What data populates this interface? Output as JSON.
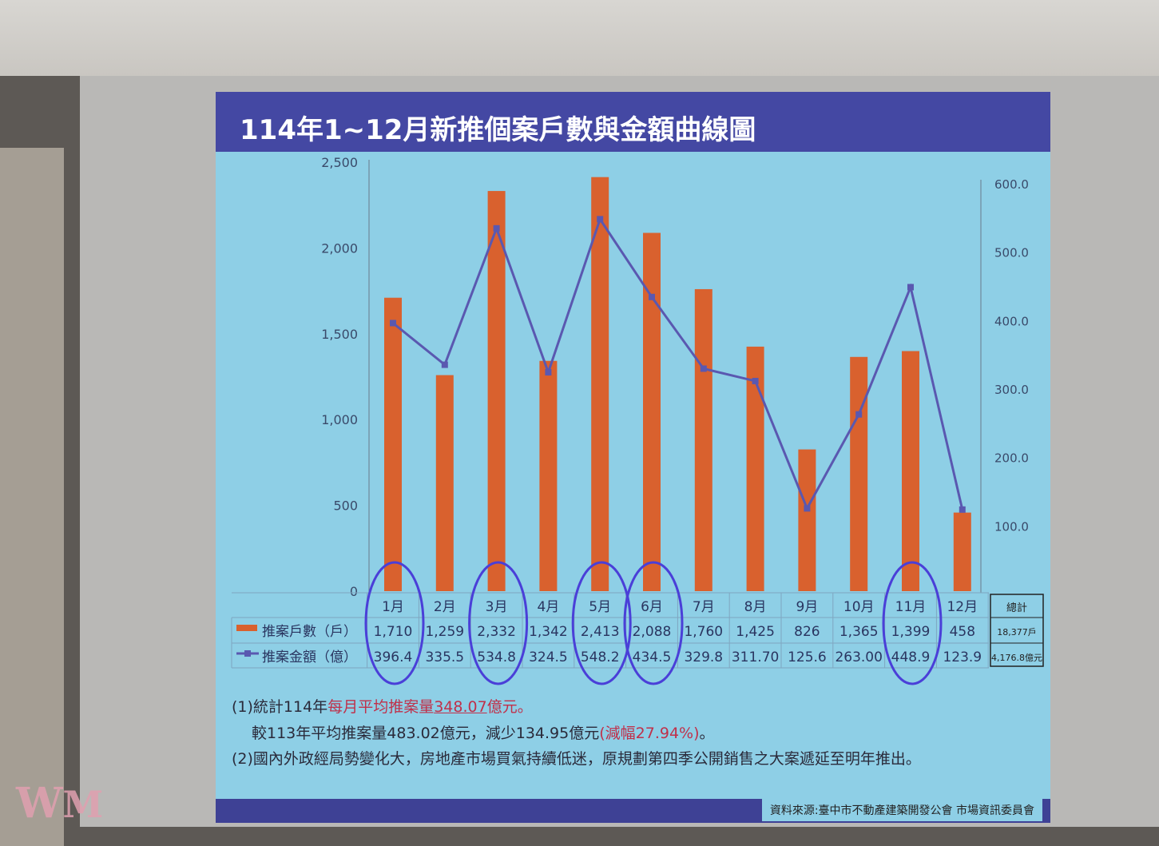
{
  "slide": {
    "title": "114年1~12月新推個案戶數與金額曲線圖",
    "notes": {
      "line1_prefix": "(1)統計114年",
      "line1_red": "每月平均推案量",
      "line1_value": "348.07",
      "line1_suffix": "億元。",
      "line2_prefix": "較113年平均推案量483.02億元，減少134.95億元",
      "line2_red": "(減幅27.94%)",
      "line2_suffix": "。",
      "line3": "(2)國內外政經局勢變化大，房地產市場買氣持續低迷，原規劃第四季公開銷售之大案遞延至明年推出。"
    },
    "source": "資料來源:臺中市不動產建築開發公會 市場資訊委員會",
    "watermark": "WM"
  },
  "chart_data": {
    "type": "bar+line",
    "categories": [
      "1月",
      "2月",
      "3月",
      "4月",
      "5月",
      "6月",
      "7月",
      "8月",
      "9月",
      "10月",
      "11月",
      "12月"
    ],
    "series": [
      {
        "name": "推案戶數（戶）",
        "type": "bar",
        "axis": "left",
        "color": "#d9612e",
        "values": [
          1710,
          1259,
          2332,
          1342,
          2413,
          2088,
          1760,
          1425,
          826,
          1365,
          1399,
          458
        ],
        "labels": [
          "1,710",
          "1,259",
          "2,332",
          "1,342",
          "2,413",
          "2,088",
          "1,760",
          "1,425",
          "826",
          "1,365",
          "1,399",
          "458"
        ]
      },
      {
        "name": "推案金額（億）",
        "type": "line",
        "axis": "right",
        "color": "#5a58b0",
        "values": [
          396.4,
          335.5,
          534.8,
          324.5,
          548.2,
          434.5,
          329.8,
          311.7,
          125.6,
          263.0,
          448.9,
          123.9
        ],
        "labels": [
          "396.4",
          "335.5",
          "534.8",
          "324.5",
          "548.2",
          "434.5",
          "329.8",
          "311.70",
          "125.6",
          "263.00",
          "448.9",
          "123.9"
        ]
      }
    ],
    "left_axis": {
      "range": [
        0,
        2500
      ],
      "ticks": [
        "0",
        "500",
        "1,000",
        "1,500",
        "2,000",
        "2,500"
      ]
    },
    "right_axis": {
      "range": [
        0,
        600
      ],
      "ticks": [
        "100.0",
        "200.0",
        "300.0",
        "400.0",
        "500.0",
        "600.0"
      ]
    },
    "total_header": "總計",
    "totals": [
      "18,377戶",
      "4,176.8億元"
    ],
    "highlighted_months": [
      "1月",
      "3月",
      "5月",
      "6月",
      "11月"
    ],
    "highlight_color": "#4a3fd8"
  }
}
